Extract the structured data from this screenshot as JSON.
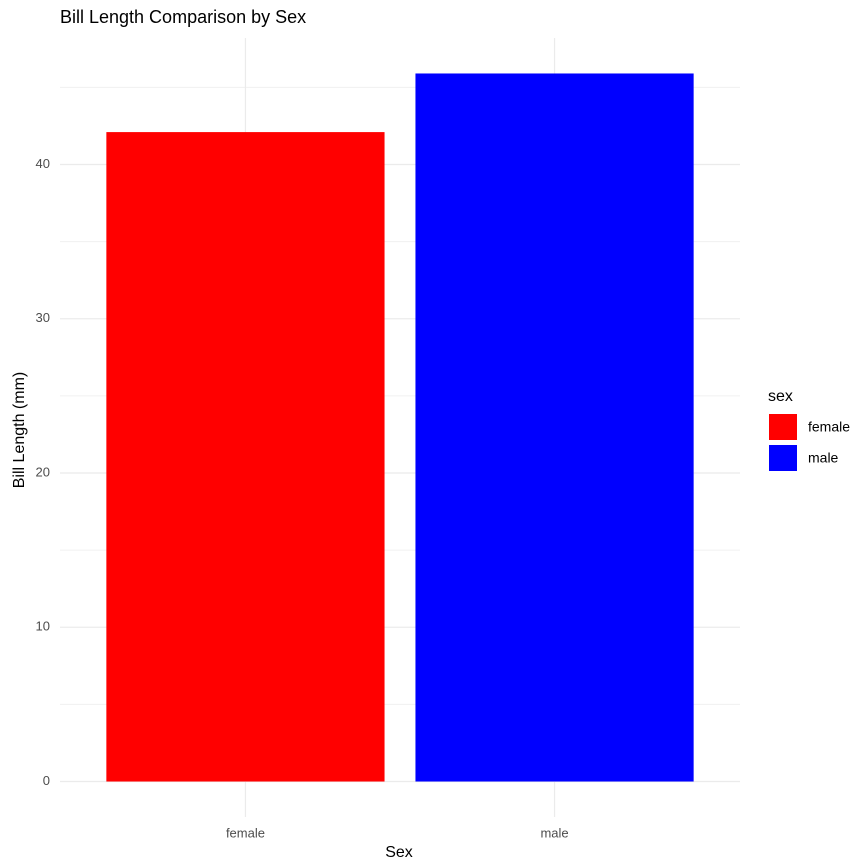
{
  "chart_data": {
    "type": "bar",
    "title": "Bill Length Comparison by Sex",
    "x_label": "Sex",
    "y_label": "Bill Length (mm)",
    "categories": [
      "female",
      "male"
    ],
    "series": [
      {
        "name": "female",
        "color": "#ff0000"
      },
      {
        "name": "male",
        "color": "#0000ff"
      }
    ],
    "values": [
      42.1,
      45.9
    ],
    "ylim": [
      -2.3,
      48.2
    ],
    "yticks": [
      0,
      10,
      20,
      30,
      40
    ],
    "grid": true,
    "legend_title": "sex",
    "legend_position": "right"
  }
}
